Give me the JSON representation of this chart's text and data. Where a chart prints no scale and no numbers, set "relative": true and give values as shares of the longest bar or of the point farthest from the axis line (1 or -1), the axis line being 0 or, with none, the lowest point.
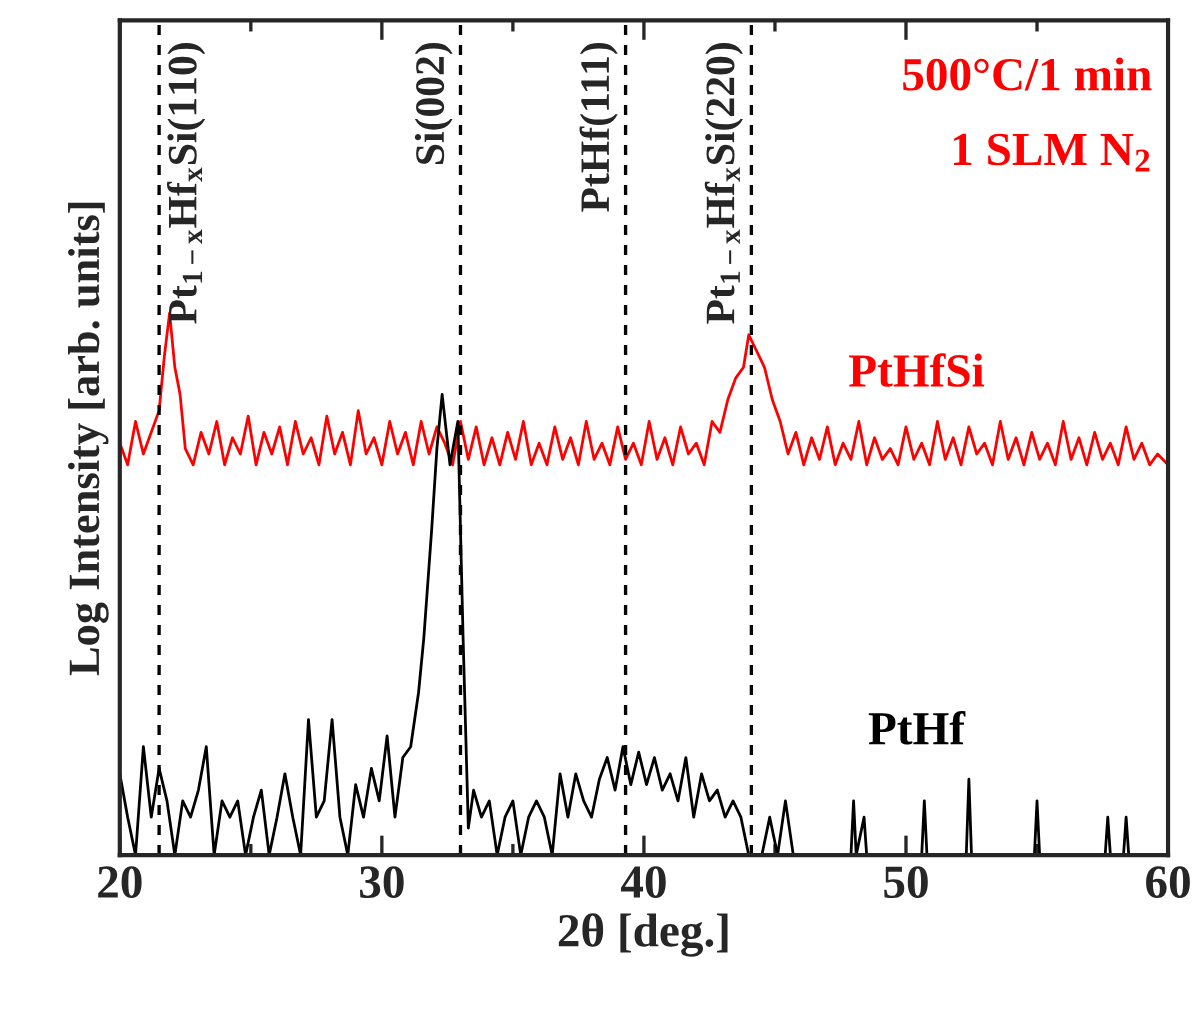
{
  "chart_data": {
    "type": "line",
    "relative": true,
    "xlabel": "2θ [deg.]",
    "ylabel": "Log Intensity [arb. units]",
    "xlim": [
      20,
      60
    ],
    "xticks": [
      20,
      30,
      40,
      50,
      60
    ],
    "grid": false,
    "legend": false,
    "marker": "none",
    "line_style": "solid",
    "annotations": [
      "500°C/1 min",
      "1 SLM N$_{2}$"
    ],
    "ref_lines": [
      {
        "axis": "x",
        "value": 21.5,
        "label": "Pt$_{1−x}$Hf$_{x}$Si(110)",
        "color": "#000000",
        "line_style": "dashed"
      },
      {
        "axis": "x",
        "value": 33.0,
        "label": "Si(002)",
        "color": "#000000",
        "line_style": "dashed"
      },
      {
        "axis": "x",
        "value": 39.3,
        "label": "PtHf(111)",
        "color": "#000000",
        "line_style": "dashed"
      },
      {
        "axis": "x",
        "value": 44.1,
        "label": "Pt$_{1−x}$Hf$_{x}$Si(220)",
        "color": "#000000",
        "line_style": "dashed"
      }
    ],
    "series": [
      {
        "name": "PtHfSi",
        "color": "#ff0000",
        "x": [
          20.0,
          20.3,
          20.6,
          20.9,
          21.2,
          21.5,
          21.7,
          21.9,
          22.1,
          22.3,
          22.5,
          22.8,
          23.1,
          23.4,
          23.7,
          24.0,
          24.3,
          24.6,
          24.9,
          25.2,
          25.5,
          25.8,
          26.1,
          26.4,
          26.7,
          27.0,
          27.3,
          27.6,
          27.9,
          28.2,
          28.5,
          28.8,
          29.1,
          29.4,
          29.7,
          30.0,
          30.3,
          30.6,
          30.9,
          31.2,
          31.5,
          31.8,
          32.1,
          32.4,
          32.7,
          33.0,
          33.3,
          33.6,
          33.9,
          34.2,
          34.5,
          34.8,
          35.1,
          35.4,
          35.7,
          36.0,
          36.3,
          36.6,
          36.9,
          37.2,
          37.5,
          37.8,
          38.1,
          38.4,
          38.7,
          39.0,
          39.3,
          39.6,
          39.9,
          40.2,
          40.5,
          40.8,
          41.1,
          41.4,
          41.7,
          42.0,
          42.3,
          42.6,
          42.9,
          43.2,
          43.5,
          43.8,
          44.0,
          44.3,
          44.6,
          44.9,
          45.2,
          45.5,
          45.8,
          46.1,
          46.4,
          46.7,
          47.0,
          47.3,
          47.6,
          47.9,
          48.2,
          48.5,
          48.8,
          49.1,
          49.4,
          49.7,
          50.0,
          50.3,
          50.6,
          50.9,
          51.2,
          51.5,
          51.8,
          52.1,
          52.4,
          52.7,
          53.0,
          53.3,
          53.6,
          53.9,
          54.2,
          54.5,
          54.8,
          55.1,
          55.4,
          55.7,
          56.0,
          56.3,
          56.6,
          56.9,
          57.2,
          57.5,
          57.8,
          58.1,
          58.4,
          58.7,
          59.0,
          59.3,
          59.6,
          60.0
        ],
        "values": [
          0.76,
          0.72,
          0.8,
          0.74,
          0.78,
          0.82,
          0.92,
          1.0,
          0.9,
          0.85,
          0.75,
          0.72,
          0.78,
          0.74,
          0.8,
          0.72,
          0.77,
          0.74,
          0.81,
          0.72,
          0.78,
          0.74,
          0.79,
          0.72,
          0.8,
          0.74,
          0.77,
          0.72,
          0.81,
          0.74,
          0.78,
          0.72,
          0.82,
          0.74,
          0.77,
          0.72,
          0.8,
          0.74,
          0.78,
          0.72,
          0.8,
          0.74,
          0.79,
          0.76,
          0.72,
          0.8,
          0.73,
          0.79,
          0.72,
          0.77,
          0.72,
          0.78,
          0.73,
          0.8,
          0.72,
          0.76,
          0.72,
          0.79,
          0.73,
          0.77,
          0.72,
          0.8,
          0.73,
          0.76,
          0.72,
          0.79,
          0.73,
          0.76,
          0.72,
          0.8,
          0.73,
          0.77,
          0.72,
          0.79,
          0.74,
          0.76,
          0.72,
          0.8,
          0.78,
          0.84,
          0.88,
          0.9,
          0.96,
          0.93,
          0.9,
          0.84,
          0.8,
          0.74,
          0.78,
          0.72,
          0.77,
          0.73,
          0.79,
          0.72,
          0.76,
          0.73,
          0.8,
          0.72,
          0.77,
          0.73,
          0.75,
          0.72,
          0.79,
          0.73,
          0.76,
          0.72,
          0.8,
          0.73,
          0.77,
          0.72,
          0.79,
          0.74,
          0.76,
          0.72,
          0.8,
          0.73,
          0.77,
          0.72,
          0.78,
          0.73,
          0.76,
          0.72,
          0.8,
          0.73,
          0.77,
          0.72,
          0.78,
          0.73,
          0.76,
          0.72,
          0.79,
          0.73,
          0.76,
          0.72,
          0.74,
          0.72
        ]
      },
      {
        "name": "PtHf",
        "color": "#000000",
        "x": [
          20.0,
          20.3,
          20.6,
          20.9,
          21.2,
          21.5,
          21.8,
          22.1,
          22.4,
          22.7,
          23.0,
          23.3,
          23.6,
          23.9,
          24.2,
          24.5,
          24.8,
          25.1,
          25.4,
          25.7,
          26.0,
          26.3,
          26.6,
          26.9,
          27.2,
          27.5,
          27.8,
          28.1,
          28.4,
          28.7,
          29.0,
          29.3,
          29.6,
          29.9,
          30.2,
          30.5,
          30.8,
          31.1,
          31.4,
          31.6,
          31.9,
          32.1,
          32.3,
          32.6,
          32.9,
          33.1,
          33.3,
          33.5,
          33.8,
          34.1,
          34.4,
          34.7,
          35.0,
          35.3,
          35.6,
          35.9,
          36.2,
          36.5,
          36.8,
          37.1,
          37.4,
          37.7,
          38.0,
          38.3,
          38.6,
          38.9,
          39.2,
          39.5,
          39.8,
          40.1,
          40.4,
          40.7,
          41.0,
          41.3,
          41.6,
          41.9,
          42.2,
          42.5,
          42.8,
          43.1,
          43.4,
          43.7,
          44.0,
          44.5,
          44.8,
          45.1,
          45.4,
          45.7,
          47.9,
          48.0,
          48.1,
          48.4,
          48.5,
          50.6,
          50.7,
          50.8,
          52.3,
          52.4,
          52.5,
          54.9,
          55.0,
          55.1,
          57.6,
          57.7,
          57.8,
          58.3,
          58.4,
          58.5,
          60.0
        ],
        "values": [
          0.15,
          0.07,
          0.0,
          0.2,
          0.07,
          0.16,
          0.1,
          0.0,
          0.1,
          0.07,
          0.12,
          0.2,
          0.0,
          0.1,
          0.07,
          0.1,
          0.0,
          0.07,
          0.12,
          0.0,
          0.07,
          0.15,
          0.07,
          0.0,
          0.25,
          0.07,
          0.1,
          0.25,
          0.07,
          0.0,
          0.13,
          0.07,
          0.16,
          0.1,
          0.22,
          0.07,
          0.18,
          0.2,
          0.3,
          0.4,
          0.6,
          0.75,
          0.85,
          0.72,
          0.8,
          0.4,
          0.05,
          0.12,
          0.07,
          0.1,
          0.0,
          0.07,
          0.1,
          0.0,
          0.07,
          0.1,
          0.07,
          0.0,
          0.15,
          0.07,
          0.15,
          0.1,
          0.07,
          0.14,
          0.18,
          0.12,
          0.2,
          0.13,
          0.19,
          0.13,
          0.18,
          0.12,
          0.15,
          0.1,
          0.18,
          0.07,
          0.15,
          0.1,
          0.12,
          0.07,
          0.1,
          0.07,
          0.0,
          0.0,
          0.07,
          0.0,
          0.1,
          0.0,
          0.0,
          0.1,
          0.0,
          0.07,
          0.0,
          0.0,
          0.1,
          0.0,
          0.0,
          0.14,
          0.0,
          0.0,
          0.1,
          0.0,
          0.0,
          0.07,
          0.0,
          0.0,
          0.07,
          0.0,
          0.0
        ]
      }
    ]
  }
}
